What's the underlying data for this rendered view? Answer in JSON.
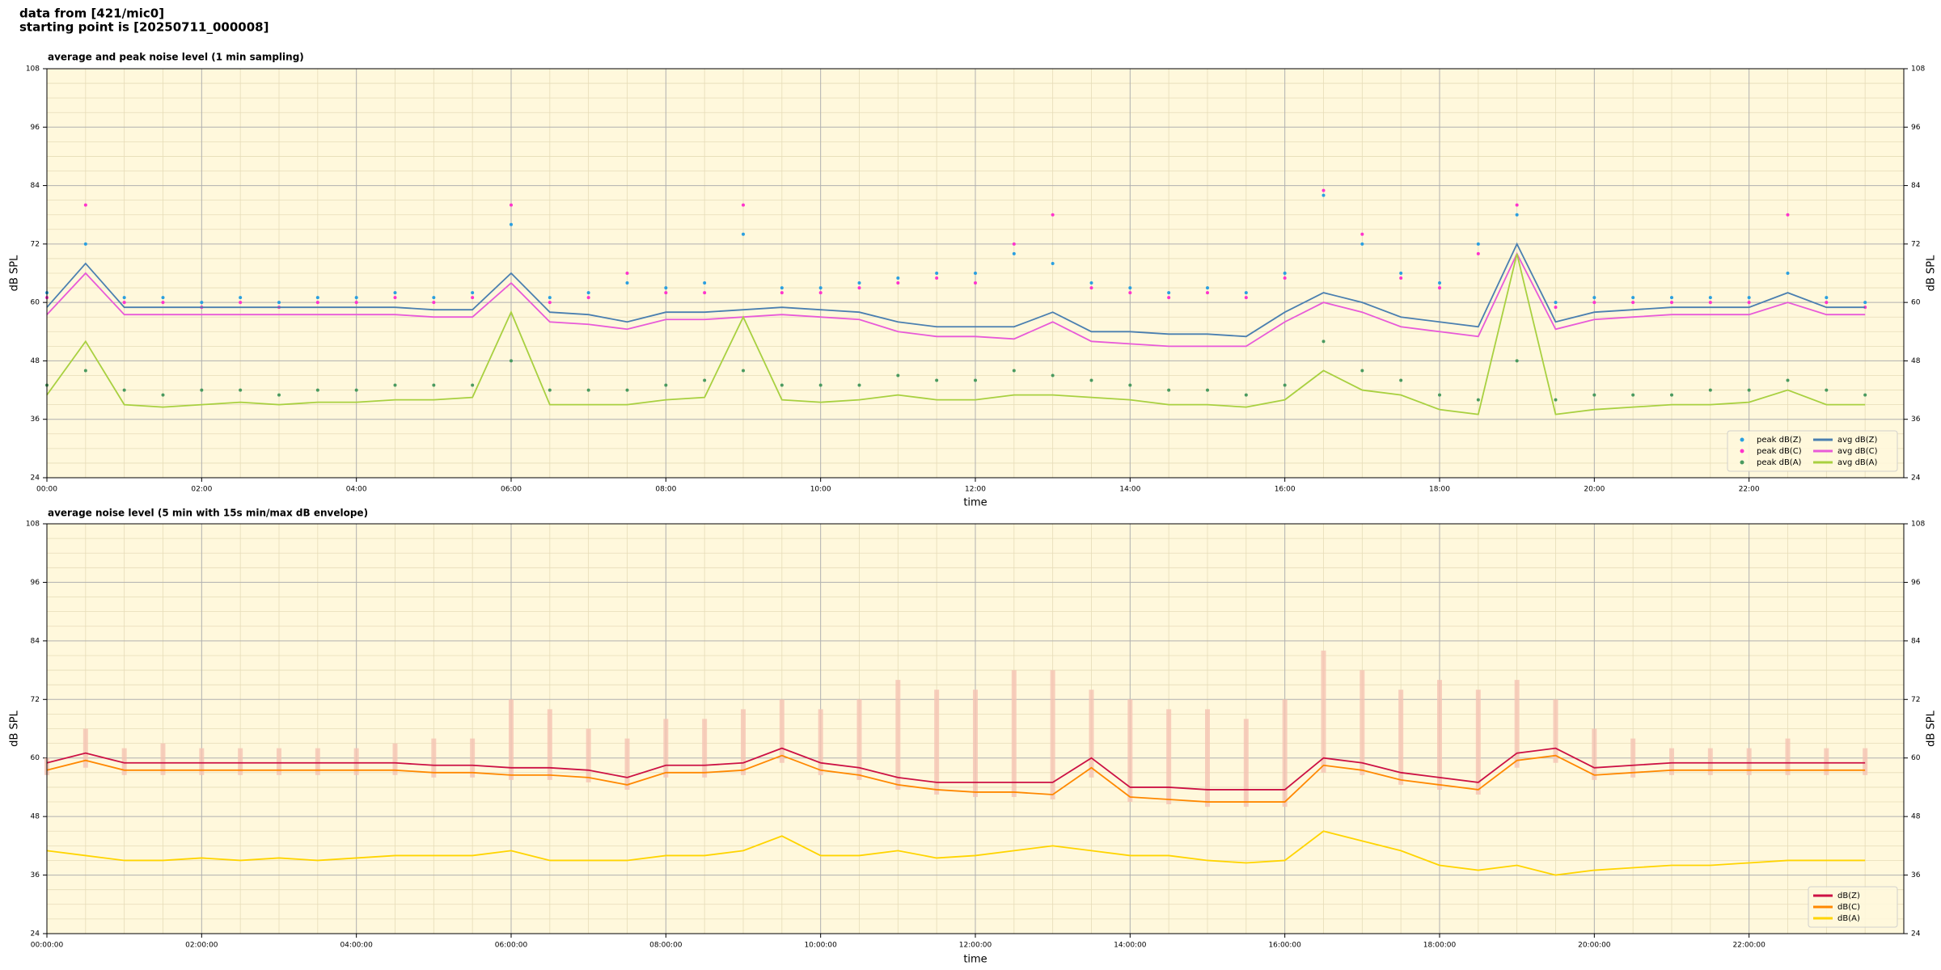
{
  "header": {
    "line1": "data from [421/mic0]",
    "line2": "starting point is [20250711_000008]"
  },
  "chart_data": [
    {
      "type": "line",
      "title": "average and peak noise level (1 min sampling)",
      "xlabel": "time",
      "ylabel": "dB SPL",
      "background": "#fff8dc",
      "grid": true,
      "legend": "lower right",
      "legend_columns": 2,
      "x": [
        "00:00",
        "00:30",
        "01:00",
        "01:30",
        "02:00",
        "02:30",
        "03:00",
        "03:30",
        "04:00",
        "04:30",
        "05:00",
        "05:30",
        "06:00",
        "06:30",
        "07:00",
        "07:30",
        "08:00",
        "08:30",
        "09:00",
        "09:30",
        "10:00",
        "10:30",
        "11:00",
        "11:30",
        "12:00",
        "12:30",
        "13:00",
        "13:30",
        "14:00",
        "14:30",
        "15:00",
        "15:30",
        "16:00",
        "16:30",
        "17:00",
        "17:30",
        "18:00",
        "18:30",
        "19:00",
        "19:30",
        "20:00",
        "20:30",
        "21:00",
        "21:30",
        "22:00",
        "22:30",
        "23:00",
        "23:30"
      ],
      "xlim": [
        "00:00",
        "24:00"
      ],
      "xticks": [
        "00:00",
        "02:00",
        "04:00",
        "06:00",
        "08:00",
        "10:00",
        "12:00",
        "14:00",
        "16:00",
        "18:00",
        "20:00",
        "22:00"
      ],
      "ylim": [
        24,
        108
      ],
      "yticks": [
        24,
        36,
        48,
        60,
        72,
        84,
        96,
        108
      ],
      "series": [
        {
          "name": "peak dB(Z)",
          "marker": "dot",
          "color": "#2a9fe0",
          "values": [
            62,
            72,
            61,
            61,
            60,
            61,
            60,
            61,
            61,
            62,
            61,
            62,
            76,
            61,
            62,
            64,
            63,
            64,
            74,
            63,
            63,
            64,
            65,
            66,
            66,
            70,
            68,
            64,
            63,
            62,
            63,
            62,
            66,
            82,
            72,
            66,
            64,
            72,
            78,
            60,
            61,
            61,
            61,
            61,
            61,
            66,
            61,
            60
          ]
        },
        {
          "name": "peak dB(C)",
          "marker": "dot",
          "color": "#ff33cc",
          "values": [
            61,
            80,
            60,
            60,
            59,
            60,
            59,
            60,
            60,
            61,
            60,
            61,
            80,
            60,
            61,
            66,
            62,
            62,
            80,
            62,
            62,
            63,
            64,
            65,
            64,
            72,
            78,
            63,
            62,
            61,
            62,
            61,
            65,
            83,
            74,
            65,
            63,
            70,
            80,
            59,
            60,
            60,
            60,
            60,
            60,
            78,
            60,
            59
          ]
        },
        {
          "name": "peak dB(A)",
          "marker": "dot",
          "color": "#4a9a60",
          "values": [
            43,
            46,
            42,
            41,
            42,
            42,
            41,
            42,
            42,
            43,
            43,
            43,
            48,
            42,
            42,
            42,
            43,
            44,
            46,
            43,
            43,
            43,
            45,
            44,
            44,
            46,
            45,
            44,
            43,
            42,
            42,
            41,
            43,
            52,
            46,
            44,
            41,
            40,
            48,
            40,
            41,
            41,
            41,
            42,
            42,
            44,
            42,
            41
          ]
        },
        {
          "name": "avg dB(Z)",
          "color": "#4a7fb0",
          "values": [
            59,
            68,
            59,
            59,
            59,
            59,
            59,
            59,
            59,
            59,
            58.5,
            58.5,
            66,
            58,
            57.5,
            56,
            58,
            58,
            58.5,
            59,
            58.5,
            58,
            56,
            55,
            55,
            55,
            58,
            54,
            54,
            53.5,
            53.5,
            53,
            58,
            62,
            60,
            57,
            56,
            55,
            72,
            56,
            58,
            58.5,
            59,
            59,
            59,
            62,
            59,
            59
          ]
        },
        {
          "name": "avg dB(C)",
          "color": "#e85ad8",
          "values": [
            57.5,
            66,
            57.5,
            57.5,
            57.5,
            57.5,
            57.5,
            57.5,
            57.5,
            57.5,
            57,
            57,
            64,
            56,
            55.5,
            54.5,
            56.5,
            56.5,
            57,
            57.5,
            57,
            56.5,
            54,
            53,
            53,
            52.5,
            56,
            52,
            51.5,
            51,
            51,
            51,
            56,
            60,
            58,
            55,
            54,
            53,
            70,
            54.5,
            56.5,
            57,
            57.5,
            57.5,
            57.5,
            60,
            57.5,
            57.5
          ]
        },
        {
          "name": "avg dB(A)",
          "color": "#a8d040",
          "values": [
            41,
            52,
            39,
            38.5,
            39,
            39.5,
            39,
            39.5,
            39.5,
            40,
            40,
            40.5,
            58,
            39,
            39,
            39,
            40,
            40.5,
            57,
            40,
            39.5,
            40,
            41,
            40,
            40,
            41,
            41,
            40.5,
            40,
            39,
            39,
            38.5,
            40,
            46,
            42,
            41,
            38,
            37,
            70,
            37,
            38,
            38.5,
            39,
            39,
            39.5,
            42,
            39,
            39
          ]
        }
      ]
    },
    {
      "type": "line",
      "title": "average noise level (5 min with 15s min/max dB envelope)",
      "xlabel": "time",
      "ylabel": "dB SPL",
      "background": "#fff8dc",
      "grid": true,
      "legend": "lower right",
      "legend_columns": 1,
      "x": [
        "00:00",
        "00:30",
        "01:00",
        "01:30",
        "02:00",
        "02:30",
        "03:00",
        "03:30",
        "04:00",
        "04:30",
        "05:00",
        "05:30",
        "06:00",
        "06:30",
        "07:00",
        "07:30",
        "08:00",
        "08:30",
        "09:00",
        "09:30",
        "10:00",
        "10:30",
        "11:00",
        "11:30",
        "12:00",
        "12:30",
        "13:00",
        "13:30",
        "14:00",
        "14:30",
        "15:00",
        "15:30",
        "16:00",
        "16:30",
        "17:00",
        "17:30",
        "18:00",
        "18:30",
        "19:00",
        "19:30",
        "20:00",
        "20:30",
        "21:00",
        "21:30",
        "22:00",
        "22:30",
        "23:00",
        "23:30"
      ],
      "xlim": [
        "00:00",
        "24:00"
      ],
      "xticks": [
        {
          "value": "00:00",
          "label": "00:00:00"
        },
        {
          "value": "02:00",
          "label": "02:00:00"
        },
        {
          "value": "04:00",
          "label": "04:00:00"
        },
        {
          "value": "06:00",
          "label": "06:00:00"
        },
        {
          "value": "08:00",
          "label": "08:00:00"
        },
        {
          "value": "10:00",
          "label": "10:00:00"
        },
        {
          "value": "12:00",
          "label": "12:00:00"
        },
        {
          "value": "14:00",
          "label": "14:00:00"
        },
        {
          "value": "16:00",
          "label": "16:00:00"
        },
        {
          "value": "18:00",
          "label": "18:00:00"
        },
        {
          "value": "20:00",
          "label": "20:00:00"
        },
        {
          "value": "22:00",
          "label": "22:00:00"
        }
      ],
      "ylim": [
        24,
        108
      ],
      "yticks": [
        24,
        36,
        48,
        60,
        72,
        84,
        96,
        108
      ],
      "envelope": {
        "color": "#f6c4b4",
        "low": [
          56.5,
          58,
          56.5,
          56.5,
          56.5,
          56.5,
          56.5,
          56.5,
          56.5,
          56.5,
          56,
          56,
          55.5,
          55.5,
          55,
          53.5,
          56,
          56,
          56.5,
          59,
          56.5,
          55.5,
          53.5,
          52.5,
          52,
          52,
          51.5,
          56,
          51,
          50.5,
          50,
          50,
          50,
          57,
          56.5,
          54.5,
          53.5,
          52.5,
          58,
          59,
          55.5,
          56,
          56.5,
          56.5,
          56.5,
          56.5,
          56.5,
          56.5
        ],
        "high": [
          60,
          66,
          62,
          63,
          62,
          62,
          62,
          62,
          62,
          63,
          64,
          64,
          72,
          70,
          66,
          64,
          68,
          68,
          70,
          72,
          70,
          72,
          76,
          74,
          74,
          78,
          78,
          74,
          72,
          70,
          70,
          68,
          72,
          82,
          78,
          74,
          76,
          74,
          76,
          72,
          66,
          64,
          62,
          62,
          62,
          64,
          62,
          62
        ]
      },
      "series": [
        {
          "name": "dB(Z)",
          "color": "#cc1144",
          "values": [
            59,
            61,
            59,
            59,
            59,
            59,
            59,
            59,
            59,
            59,
            58.5,
            58.5,
            58,
            58,
            57.5,
            56,
            58.5,
            58.5,
            59,
            62,
            59,
            58,
            56,
            55,
            55,
            55,
            55,
            60,
            54,
            54,
            53.5,
            53.5,
            53.5,
            60,
            59,
            57,
            56,
            55,
            61,
            62,
            58,
            58.5,
            59,
            59,
            59,
            59,
            59,
            59
          ]
        },
        {
          "name": "dB(C)",
          "color": "#ff8800",
          "values": [
            57.5,
            59.5,
            57.5,
            57.5,
            57.5,
            57.5,
            57.5,
            57.5,
            57.5,
            57.5,
            57,
            57,
            56.5,
            56.5,
            56,
            54.5,
            57,
            57,
            57.5,
            60.5,
            57.5,
            56.5,
            54.5,
            53.5,
            53,
            53,
            52.5,
            58,
            52,
            51.5,
            51,
            51,
            51,
            58.5,
            57.5,
            55.5,
            54.5,
            53.5,
            59.5,
            60.5,
            56.5,
            57,
            57.5,
            57.5,
            57.5,
            57.5,
            57.5,
            57.5
          ]
        },
        {
          "name": "dB(A)",
          "color": "#ffd400",
          "values": [
            41,
            40,
            39,
            39,
            39.5,
            39,
            39.5,
            39,
            39.5,
            40,
            40,
            40,
            41,
            39,
            39,
            39,
            40,
            40,
            41,
            44,
            40,
            40,
            41,
            39.5,
            40,
            41,
            42,
            41,
            40,
            40,
            39,
            38.5,
            39,
            45,
            43,
            41,
            38,
            37,
            38,
            36,
            37,
            37.5,
            38,
            38,
            38.5,
            39,
            39,
            39
          ]
        }
      ]
    }
  ]
}
